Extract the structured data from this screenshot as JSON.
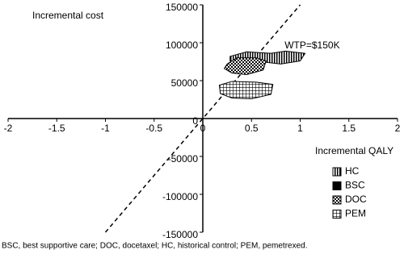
{
  "chart_data": {
    "type": "region",
    "y_axis_title": "Incremental cost",
    "x_axis_title": "Incremental QALY",
    "xlim": [
      -2,
      2
    ],
    "xticks": [
      -2,
      -1.5,
      -1,
      -0.5,
      0,
      0.5,
      1,
      1.5,
      2
    ],
    "ylim": [
      -150000,
      150000
    ],
    "yticks": [
      -150000,
      -100000,
      -50000,
      0,
      50000,
      100000,
      150000
    ],
    "threshold": {
      "label": "WTP=$150K",
      "slope": 150000
    },
    "series": [
      {
        "name": "HC",
        "color": "#000000",
        "pattern": "vertical-stripes",
        "x": [
          0.28,
          0.45,
          0.7,
          0.85,
          1.05,
          1.0,
          0.8,
          0.6,
          0.4,
          0.28
        ],
        "y": [
          82000,
          88000,
          86000,
          89000,
          86000,
          76000,
          72000,
          75000,
          76000,
          76000
        ]
      },
      {
        "name": "BSC",
        "color": "#000000",
        "pattern": "solid",
        "x": [],
        "y": []
      },
      {
        "name": "DOC",
        "color": "#000000",
        "pattern": "checker",
        "x": [
          0.25,
          0.35,
          0.55,
          0.65,
          0.62,
          0.45,
          0.3,
          0.22
        ],
        "y": [
          72000,
          80000,
          80000,
          76000,
          64000,
          58000,
          60000,
          66000
        ]
      },
      {
        "name": "PEM",
        "color": "#000000",
        "pattern": "grid",
        "x": [
          0.17,
          0.3,
          0.55,
          0.72,
          0.7,
          0.5,
          0.3,
          0.18
        ],
        "y": [
          44000,
          49000,
          48000,
          45000,
          32000,
          26000,
          27000,
          33000
        ]
      }
    ],
    "footnote": "BSC, best supportive care; DOC, docetaxel; HC, historical control; PEM, pemetrexed."
  }
}
